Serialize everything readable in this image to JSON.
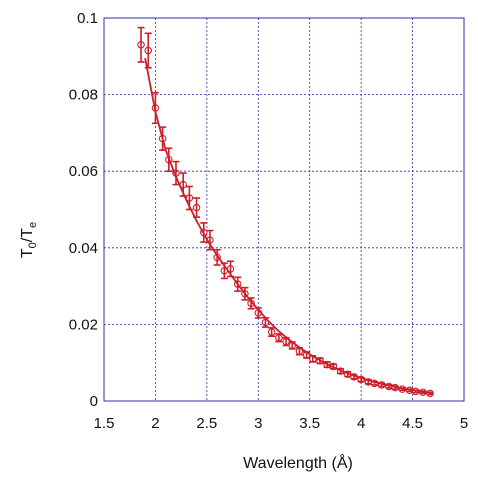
{
  "chart_data": {
    "type": "scatter",
    "xlabel": "Wavelength (Å)",
    "ylabel": {
      "base1": "T",
      "sub1": "0",
      "sep": "/T",
      "sub2": "e"
    },
    "xlim": [
      1.5,
      5
    ],
    "ylim": [
      0,
      0.1
    ],
    "x_ticks": [
      1.5,
      2,
      2.5,
      3,
      3.5,
      4,
      4.5,
      5
    ],
    "y_ticks": [
      0,
      0.02,
      0.04,
      0.06,
      0.08,
      0.1
    ],
    "x_tick_labels": [
      "1.5",
      "2",
      "2.5",
      "3",
      "3.5",
      "4",
      "4.5",
      "5"
    ],
    "y_tick_labels": [
      "0",
      "0.02",
      "0.04",
      "0.06",
      "0.08",
      "0.1"
    ],
    "grid": true,
    "colors": {
      "data": "#cc1f2a",
      "fit": "#cc1f2a",
      "grid": "#2c2cb0",
      "axes": "#2c2cb0"
    },
    "series": [
      {
        "style": "markers-with-errorbars",
        "x": [
          1.86,
          1.93,
          2.0,
          2.07,
          2.13,
          2.2,
          2.27,
          2.33,
          2.4,
          2.47,
          2.53,
          2.6,
          2.67,
          2.73,
          2.8,
          2.87,
          2.93,
          3.0,
          3.07,
          3.13,
          3.2,
          3.27,
          3.33,
          3.4,
          3.47,
          3.53,
          3.6,
          3.67,
          3.73,
          3.8,
          3.87,
          3.93,
          4.0,
          4.07,
          4.13,
          4.2,
          4.27,
          4.33,
          4.4,
          4.47,
          4.53,
          4.6,
          4.67
        ],
        "y": [
          0.093,
          0.0915,
          0.0765,
          0.0685,
          0.063,
          0.0595,
          0.0565,
          0.053,
          0.0505,
          0.044,
          0.042,
          0.0375,
          0.034,
          0.0345,
          0.0305,
          0.028,
          0.0255,
          0.023,
          0.0205,
          0.018,
          0.0165,
          0.0155,
          0.0145,
          0.013,
          0.012,
          0.011,
          0.0105,
          0.0095,
          0.009,
          0.0078,
          0.007,
          0.0063,
          0.0056,
          0.005,
          0.0046,
          0.0042,
          0.0038,
          0.0035,
          0.0031,
          0.0028,
          0.0025,
          0.0023,
          0.002
        ],
        "err": [
          0.0045,
          0.0045,
          0.004,
          0.003,
          0.003,
          0.003,
          0.003,
          0.003,
          0.0025,
          0.0025,
          0.0025,
          0.002,
          0.002,
          0.002,
          0.0018,
          0.0016,
          0.0014,
          0.0013,
          0.0012,
          0.0011,
          0.001,
          0.001,
          0.0009,
          0.0009,
          0.0008,
          0.0008,
          0.0007,
          0.0007,
          0.0006,
          0.0006,
          0.0006,
          0.0005,
          0.0005,
          0.0005,
          0.0004,
          0.0004,
          0.0004,
          0.0004,
          0.0003,
          0.0003,
          0.0003,
          0.0003,
          0.0003
        ]
      },
      {
        "style": "line",
        "x": [
          1.9,
          2.0,
          2.1,
          2.2,
          2.3,
          2.4,
          2.5,
          2.6,
          2.7,
          2.8,
          2.9,
          3.0,
          3.1,
          3.2,
          3.3,
          3.4,
          3.5,
          3.6,
          3.7,
          3.8,
          3.9,
          4.0,
          4.1,
          4.2,
          4.3,
          4.4,
          4.5,
          4.6,
          4.7
        ],
        "y": [
          0.0895,
          0.0755,
          0.0655,
          0.0585,
          0.0525,
          0.047,
          0.0422,
          0.038,
          0.0342,
          0.0305,
          0.027,
          0.0238,
          0.0208,
          0.0182,
          0.016,
          0.014,
          0.0122,
          0.0106,
          0.0092,
          0.008,
          0.0069,
          0.006,
          0.0052,
          0.0045,
          0.0039,
          0.0033,
          0.0029,
          0.0024,
          0.0021
        ]
      }
    ]
  }
}
